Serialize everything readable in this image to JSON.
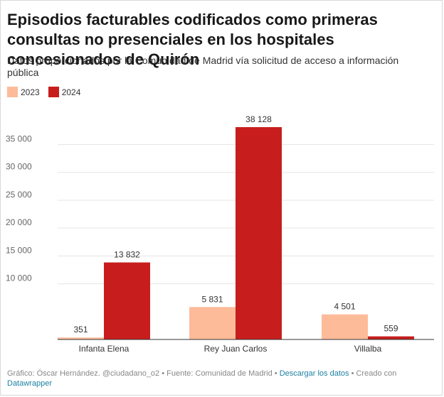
{
  "header": {
    "title": "Episodios facturables codificados como primeras consultas no presenciales en los hospitales concesionados de Quirón",
    "subtitle": "Datos proporcionados por la Comunidad de Madrid vía solicitud de acceso a información pública"
  },
  "colors": {
    "2023": "#fdbb9a",
    "2024": "#c71e1d",
    "grid": "#e5e5e5",
    "axis": "#333333"
  },
  "chart_data": {
    "type": "bar",
    "categories": [
      "Infanta Elena",
      "Rey Juan Carlos",
      "Villalba"
    ],
    "series": [
      {
        "name": "2023",
        "values": [
          351,
          5831,
          4501
        ],
        "labels": [
          "351",
          "5 831",
          "4 501"
        ]
      },
      {
        "name": "2024",
        "values": [
          13832,
          38128,
          559
        ],
        "labels": [
          "13 832",
          "38 128",
          "559"
        ]
      }
    ],
    "yticks": [
      10000,
      15000,
      20000,
      25000,
      30000,
      35000
    ],
    "ytick_labels": [
      "10 000",
      "15 000",
      "20 000",
      "25 000",
      "30 000",
      "35 000"
    ],
    "ylim": [
      0,
      38128
    ],
    "legend_position": "top-left",
    "grid": true
  },
  "footer": {
    "credit": "Gráfico: Óscar Hernández. @ciudadano_o2 • Fuente: Comunidad de Madrid • ",
    "download_link": "Descargar los datos",
    "created": " • Creado con ",
    "tool_link": "Datawrapper"
  }
}
